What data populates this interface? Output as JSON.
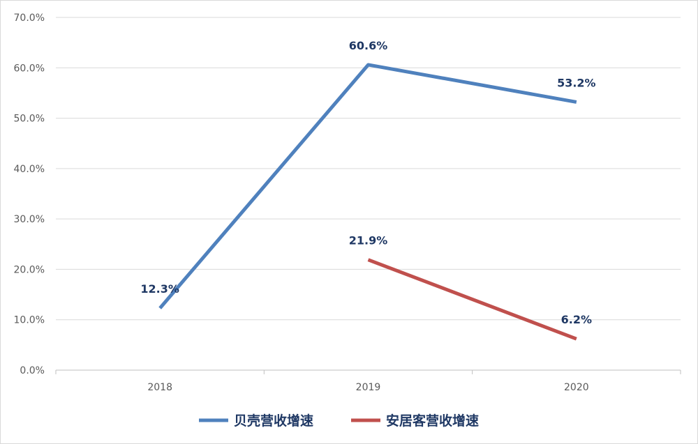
{
  "chart_data": {
    "type": "line",
    "categories": [
      "2018",
      "2019",
      "2020"
    ],
    "series": [
      {
        "name": "贝壳营收增速",
        "color": "#4f81bd",
        "values": [
          12.3,
          60.6,
          53.2
        ],
        "labels": [
          "12.3%",
          "60.6%",
          "53.2%"
        ]
      },
      {
        "name": "安居客营收增速",
        "color": "#c0504d",
        "values": [
          null,
          21.9,
          6.2
        ],
        "labels": [
          "",
          "21.9%",
          "6.2%"
        ]
      }
    ],
    "ylim": [
      0,
      70
    ],
    "yticks": [
      "0.0%",
      "10.0%",
      "20.0%",
      "30.0%",
      "40.0%",
      "50.0%",
      "60.0%",
      "70.0%"
    ],
    "grid": true,
    "legend": "bottom"
  }
}
